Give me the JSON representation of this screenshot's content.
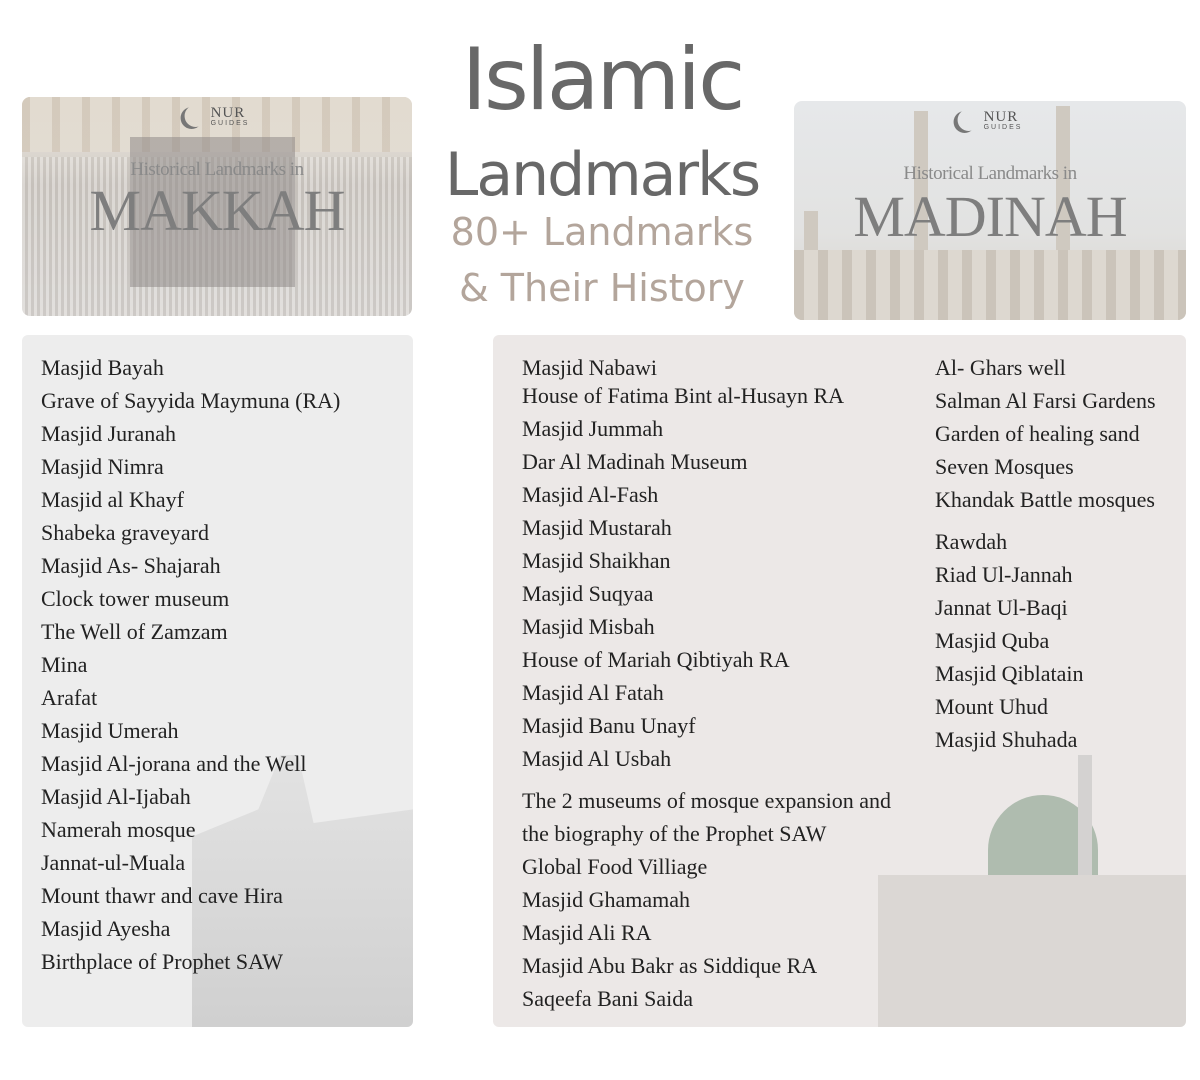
{
  "title": {
    "line1": "Islamic",
    "line2": "Landmarks",
    "line3": "80+ Landmarks",
    "line4": "& Their History"
  },
  "colors": {
    "title": "#686868",
    "subtitle": "#b3a59b",
    "left_card": "#ededed",
    "right_card": "#ece8e7"
  },
  "banners": {
    "makkah": {
      "logo": "NUR",
      "logo_sub": "GUIDES",
      "heading": "Historical Landmarks in",
      "city": "MAKKAH"
    },
    "madinah": {
      "logo": "NUR",
      "logo_sub": "GUIDES",
      "heading": "Historical Landmarks in",
      "city": "MADINAH"
    }
  },
  "makkah_list": [
    "Masjid Bayah",
    "Grave of Sayyida Maymuna (RA)",
    "Masjid Juranah",
    "Masjid Nimra",
    "Masjid al Khayf",
    "Shabeka graveyard",
    "Masjid As- Shajarah",
    "Clock tower museum",
    "The Well of Zamzam",
    "Mina",
    "Arafat",
    "Masjid Umerah",
    "Masjid Al-jorana and the Well",
    "Masjid Al-Ijabah",
    "Namerah mosque",
    "Jannat-ul-Muala",
    "Mount thawr and cave Hira",
    " Masjid Ayesha",
    "Birthplace of Prophet SAW"
  ],
  "madinah_list_1": [
    "Masjid Nabawi",
    "House of Fatima Bint al-Husayn RA",
    "Masjid Jummah",
    "Dar Al Madinah Museum",
    "Masjid Al-Fash",
    "Masjid Mustarah",
    "Masjid Shaikhan",
    "Masjid Suqyaa",
    "Masjid Misbah",
    "House of Mariah Qibtiyah RA",
    "Masjid Al Fatah",
    "Masjid Banu Unayf",
    "Masjid Al Usbah",
    "The 2 museums of mosque expansion and the biography of the Prophet SAW",
    "Global Food Villiage",
    "Masjid Ghamamah",
    "Masjid Ali RA",
    "Masjid Abu Bakr as Siddique RA",
    "Saqeefa Bani Saida"
  ],
  "madinah_list_2": [
    "Al- Ghars well",
    "Salman Al Farsi Gardens",
    "Garden of healing sand",
    "Seven Mosques",
    "Khandak Battle mosques",
    "Rawdah",
    "Riad Ul-Jannah",
    "Jannat Ul-Baqi",
    "Masjid Quba",
    "Masjid Qiblatain",
    "Mount Uhud",
    "Masjid Shuhada"
  ]
}
